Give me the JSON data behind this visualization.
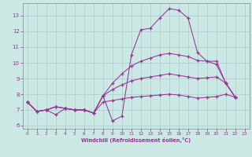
{
  "xlabel": "Windchill (Refroidissement éolien,°C)",
  "background_color": "#cce8e4",
  "grid_color": "#aacccc",
  "line_color": "#993399",
  "xlim": [
    -0.5,
    23.5
  ],
  "ylim": [
    5.8,
    13.8
  ],
  "yticks": [
    6,
    7,
    8,
    9,
    10,
    11,
    12,
    13
  ],
  "xticks": [
    0,
    1,
    2,
    3,
    4,
    5,
    6,
    7,
    8,
    9,
    10,
    11,
    12,
    13,
    14,
    15,
    16,
    17,
    18,
    19,
    20,
    21,
    22,
    23
  ],
  "line1_x": [
    0,
    1,
    2,
    3,
    4,
    5,
    6,
    7,
    8,
    9,
    10,
    11,
    12,
    13,
    14,
    15,
    16,
    17,
    18,
    19,
    20,
    21,
    22
  ],
  "line1_y": [
    7.5,
    6.9,
    7.0,
    6.7,
    7.1,
    7.0,
    7.0,
    6.8,
    7.9,
    6.3,
    6.6,
    10.5,
    12.1,
    12.2,
    12.85,
    13.45,
    13.35,
    12.85,
    10.65,
    10.1,
    9.9,
    8.7,
    7.8
  ],
  "line2_x": [
    0,
    1,
    2,
    3,
    4,
    5,
    6,
    7,
    8,
    9,
    10,
    11,
    12,
    13,
    14,
    15,
    16,
    17,
    18,
    19,
    20,
    21,
    22
  ],
  "line2_y": [
    7.5,
    6.9,
    7.0,
    7.2,
    7.1,
    7.0,
    7.0,
    6.8,
    7.9,
    8.7,
    9.3,
    9.8,
    10.1,
    10.3,
    10.5,
    10.6,
    10.5,
    10.4,
    10.15,
    10.1,
    10.1,
    8.7,
    7.8
  ],
  "line3_x": [
    0,
    1,
    2,
    3,
    4,
    5,
    6,
    7,
    8,
    9,
    10,
    11,
    12,
    13,
    14,
    15,
    16,
    17,
    18,
    19,
    20,
    21,
    22
  ],
  "line3_y": [
    7.5,
    6.9,
    7.0,
    7.2,
    7.1,
    7.0,
    7.0,
    6.8,
    7.9,
    8.3,
    8.6,
    8.85,
    9.0,
    9.1,
    9.2,
    9.3,
    9.2,
    9.1,
    9.0,
    9.05,
    9.1,
    8.7,
    7.8
  ],
  "line4_x": [
    0,
    1,
    2,
    3,
    4,
    5,
    6,
    7,
    8,
    9,
    10,
    11,
    12,
    13,
    14,
    15,
    16,
    17,
    18,
    19,
    20,
    21,
    22
  ],
  "line4_y": [
    7.5,
    6.9,
    7.0,
    7.2,
    7.1,
    7.0,
    7.0,
    6.8,
    7.5,
    7.6,
    7.7,
    7.8,
    7.85,
    7.9,
    7.95,
    8.0,
    7.95,
    7.85,
    7.75,
    7.8,
    7.85,
    8.0,
    7.8
  ]
}
